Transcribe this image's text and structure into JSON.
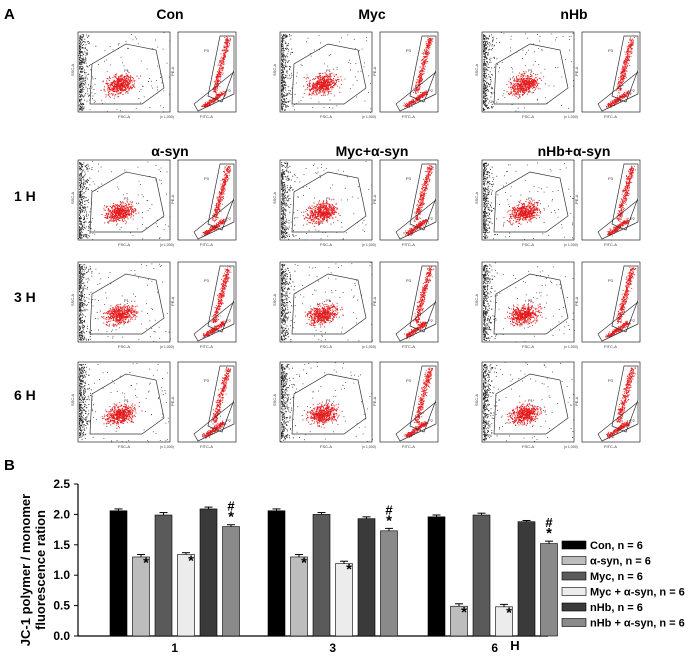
{
  "figure": {
    "panel_a_label": "A",
    "panel_b_label": "B",
    "columns_top": [
      "Con",
      "Myc",
      "nHb"
    ],
    "columns_bottom": [
      "α-syn",
      "Myc+α-syn",
      "nHb+α-syn"
    ],
    "time_rows": [
      "1 H",
      "3 H",
      "6 H"
    ],
    "scatter_labels": {
      "ssc_axis": "SSC-A",
      "fsc_axis": "FSC-A",
      "pe_axis": "PE-A",
      "fitc_axis": "FITC-A",
      "scale_note": "(x 1,000)",
      "gate_p1": "P1",
      "gate_p2": "P2",
      "gate_p3": "P3"
    }
  },
  "chart_data": {
    "type": "bar",
    "title": "",
    "ylabel_line1": "JC-1 polymer / monomer",
    "ylabel_line2": "fluorescence ration",
    "xlabel": "H",
    "categories": [
      "1",
      "3",
      "6"
    ],
    "ylim": [
      0,
      2.5
    ],
    "yticks": [
      "0.0",
      "0.5",
      "1.0",
      "1.5",
      "2.0",
      "2.5"
    ],
    "series": [
      {
        "name": "Con, n = 6",
        "color": "#000000",
        "values": [
          2.06,
          2.06,
          1.96
        ],
        "errors": [
          0.03,
          0.03,
          0.03
        ],
        "marks": [
          "",
          "",
          ""
        ]
      },
      {
        "name": "α-syn, n = 6",
        "color": "#bdbdbd",
        "values": [
          1.3,
          1.3,
          0.49
        ],
        "errors": [
          0.04,
          0.04,
          0.04
        ],
        "marks": [
          "*",
          "*",
          "*"
        ]
      },
      {
        "name": "Myc, n = 6",
        "color": "#5a5a5a",
        "values": [
          1.99,
          2.0,
          1.99
        ],
        "errors": [
          0.04,
          0.03,
          0.03
        ],
        "marks": [
          "",
          "",
          ""
        ]
      },
      {
        "name": "Myc + α-syn, n = 6",
        "color": "#ececec",
        "values": [
          1.34,
          1.19,
          0.48
        ],
        "errors": [
          0.03,
          0.04,
          0.04
        ],
        "marks": [
          "*",
          "*",
          "*"
        ]
      },
      {
        "name": "nHb, n = 6",
        "color": "#3a3a3a",
        "values": [
          2.09,
          1.93,
          1.88
        ],
        "errors": [
          0.03,
          0.03,
          0.02
        ],
        "marks": [
          "",
          "",
          ""
        ]
      },
      {
        "name": "nHb + α-syn, n = 6",
        "color": "#8a8a8a",
        "values": [
          1.8,
          1.73,
          1.52
        ],
        "errors": [
          0.03,
          0.04,
          0.04
        ],
        "marks": [
          "*",
          "*",
          "*"
        ]
      }
    ],
    "hash_marks": [
      "#",
      "#",
      "#"
    ],
    "legend_position": "right"
  }
}
